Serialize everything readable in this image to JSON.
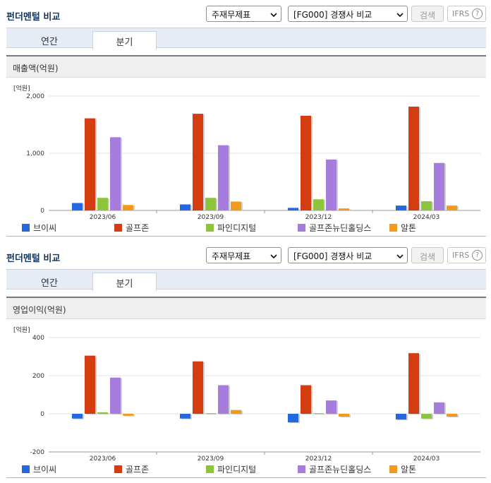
{
  "header": {
    "title": "펀더멘털 비교",
    "select_statement": "주재무제표",
    "select_compare": "[FG000] 경쟁사 비교",
    "search_button": "검색",
    "ifrs_button": "IFRS",
    "help_glyph": "?"
  },
  "tabs": {
    "annual": "연간",
    "quarter": "분기",
    "active": "quarter"
  },
  "legend": [
    {
      "name": "브이씨",
      "color": "#2468e0"
    },
    {
      "name": "골프존",
      "color": "#d43d12"
    },
    {
      "name": "파인디지털",
      "color": "#8cc43c"
    },
    {
      "name": "골프존뉴딘홀딩스",
      "color": "#a67ddc"
    },
    {
      "name": "알톤",
      "color": "#f29a1e"
    }
  ],
  "chart_data": [
    {
      "type": "bar",
      "title": "매출액(억원)",
      "unit": "[억원]",
      "categories": [
        "2023/06",
        "2023/09",
        "2023/12",
        "2024/03"
      ],
      "ylim": [
        0,
        2000
      ],
      "yticks": [
        0,
        1000,
        2000
      ],
      "ytick_labels": [
        "0",
        "1,000",
        "2,000"
      ],
      "grid": true,
      "legend_position": "bottom",
      "series": [
        {
          "name": "브이씨",
          "values": [
            130,
            105,
            45,
            85
          ]
        },
        {
          "name": "골프존",
          "values": [
            1610,
            1690,
            1655,
            1815
          ]
        },
        {
          "name": "파인디지털",
          "values": [
            220,
            220,
            195,
            160
          ]
        },
        {
          "name": "골프존뉴딘홀딩스",
          "values": [
            1280,
            1140,
            890,
            830
          ]
        },
        {
          "name": "알톤",
          "values": [
            95,
            155,
            35,
            85
          ]
        }
      ]
    },
    {
      "type": "bar",
      "title": "영업이익(억원)",
      "unit": "[억원]",
      "categories": [
        "2023/06",
        "2023/09",
        "2023/12",
        "2024/03"
      ],
      "ylim": [
        -200,
        400
      ],
      "yticks": [
        -200,
        0,
        200,
        400
      ],
      "ytick_labels": [
        "-200",
        "0",
        "200",
        "400"
      ],
      "grid": true,
      "legend_position": "bottom",
      "series": [
        {
          "name": "브이씨",
          "values": [
            -25,
            -25,
            -45,
            -30
          ]
        },
        {
          "name": "골프존",
          "values": [
            305,
            275,
            150,
            318
          ]
        },
        {
          "name": "파인디지털",
          "values": [
            8,
            3,
            3,
            -25
          ]
        },
        {
          "name": "골프존뉴딘홀딩스",
          "values": [
            190,
            150,
            70,
            60
          ]
        },
        {
          "name": "알톤",
          "values": [
            -10,
            20,
            -15,
            -15
          ]
        }
      ]
    }
  ]
}
